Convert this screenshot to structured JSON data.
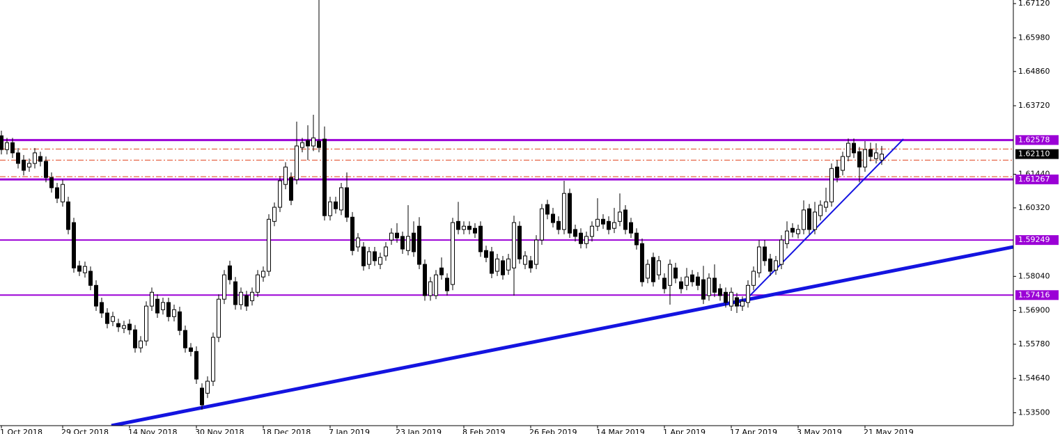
{
  "chart_data": {
    "type": "candlestick",
    "categories": [
      "1 Oct 2018",
      null,
      null,
      null,
      null,
      null,
      null,
      null,
      null,
      null,
      null,
      "29 Oct 2018",
      null,
      null,
      null,
      null,
      null,
      null,
      null,
      null,
      null,
      null,
      null,
      "14 Nov 2018",
      null,
      null,
      null,
      null,
      null,
      null,
      null,
      null,
      null,
      null,
      null,
      "30 Nov 2018",
      null,
      null,
      null,
      null,
      null,
      null,
      null,
      null,
      null,
      null,
      null,
      "18 Dec 2018",
      null,
      null,
      null,
      null,
      null,
      null,
      null,
      null,
      null,
      null,
      null,
      "7 Jan 2019",
      null,
      null,
      null,
      null,
      null,
      null,
      null,
      null,
      null,
      null,
      null,
      "23 Jan 2019",
      null,
      null,
      null,
      null,
      null,
      null,
      null,
      null,
      null,
      null,
      null,
      "8 Feb 2019",
      null,
      null,
      null,
      null,
      null,
      null,
      null,
      null,
      null,
      null,
      null,
      "26 Feb 2019",
      null,
      null,
      null,
      null,
      null,
      null,
      null,
      null,
      null,
      null,
      null,
      "14 Mar 2019",
      null,
      null,
      null,
      null,
      null,
      null,
      null,
      null,
      null,
      null,
      null,
      "1 Apr 2019",
      null,
      null,
      null,
      null,
      null,
      null,
      null,
      null,
      null,
      null,
      null,
      "17 Apr 2019",
      null,
      null,
      null,
      null,
      null,
      null,
      null,
      null,
      null,
      null,
      null,
      "3 May 2019",
      null,
      null,
      null,
      null,
      null,
      null,
      null,
      null,
      null,
      null,
      null,
      "21 May 2019",
      null,
      null,
      null
    ],
    "candles": [
      [
        1.6272,
        1.6289,
        1.621,
        1.6226
      ],
      [
        1.6226,
        1.6265,
        1.621,
        1.6249
      ],
      [
        1.6249,
        1.6265,
        1.6198,
        1.6215
      ],
      [
        1.6215,
        1.6231,
        1.6163,
        1.618
      ],
      [
        1.6191,
        1.6208,
        1.614,
        1.6157
      ],
      [
        1.6168,
        1.6196,
        1.6152,
        1.618
      ],
      [
        1.618,
        1.6231,
        1.6163,
        1.6215
      ],
      [
        1.6203,
        1.6219,
        1.617,
        1.6187
      ],
      [
        1.6187,
        1.6203,
        1.6117,
        1.6133
      ],
      [
        1.6133,
        1.615,
        1.6083,
        1.6099
      ],
      [
        1.6099,
        1.6115,
        1.6048,
        1.6064
      ],
      [
        1.6052,
        1.6126,
        1.6036,
        1.611
      ],
      [
        1.6052,
        1.6069,
        1.5944,
        1.596
      ],
      [
        1.5983,
        1.5999,
        1.5816,
        1.5832
      ],
      [
        1.5839,
        1.5856,
        1.5805,
        1.5821
      ],
      [
        1.5816,
        1.5853,
        1.58,
        1.5837
      ],
      [
        1.5821,
        1.5837,
        1.5758,
        1.5774
      ],
      [
        1.5774,
        1.5791,
        1.5689,
        1.5705
      ],
      [
        1.5717,
        1.5733,
        1.5666,
        1.5682
      ],
      [
        1.5682,
        1.5698,
        1.5631,
        1.5647
      ],
      [
        1.5654,
        1.5686,
        1.5638,
        1.567
      ],
      [
        1.5647,
        1.5663,
        1.5619,
        1.5636
      ],
      [
        1.5631,
        1.5656,
        1.5615,
        1.564
      ],
      [
        1.5645,
        1.5661,
        1.561,
        1.5626
      ],
      [
        1.5626,
        1.5642,
        1.555,
        1.5566
      ],
      [
        1.5566,
        1.5605,
        1.555,
        1.5589
      ],
      [
        1.5589,
        1.5721,
        1.5573,
        1.5705
      ],
      [
        1.5705,
        1.5767,
        1.5689,
        1.5751
      ],
      [
        1.5728,
        1.5744,
        1.5666,
        1.5682
      ],
      [
        1.5693,
        1.5733,
        1.5677,
        1.5717
      ],
      [
        1.5717,
        1.5733,
        1.5654,
        1.567
      ],
      [
        1.567,
        1.571,
        1.5654,
        1.5693
      ],
      [
        1.5686,
        1.5703,
        1.5608,
        1.5624
      ],
      [
        1.5624,
        1.564,
        1.555,
        1.5566
      ],
      [
        1.5566,
        1.5582,
        1.5538,
        1.5554
      ],
      [
        1.5554,
        1.5571,
        1.5446,
        1.5462
      ],
      [
        1.5432,
        1.5448,
        1.536,
        1.5376
      ],
      [
        1.5415,
        1.5471,
        1.5399,
        1.5455
      ],
      [
        1.5455,
        1.5617,
        1.5439,
        1.5601
      ],
      [
        1.5601,
        1.5744,
        1.5585,
        1.5728
      ],
      [
        1.5728,
        1.5825,
        1.5712,
        1.5809
      ],
      [
        1.5839,
        1.5856,
        1.5777,
        1.5793
      ],
      [
        1.5786,
        1.5802,
        1.5693,
        1.571
      ],
      [
        1.571,
        1.5767,
        1.5693,
        1.5751
      ],
      [
        1.574,
        1.5756,
        1.5689,
        1.5705
      ],
      [
        1.5723,
        1.5767,
        1.5707,
        1.5751
      ],
      [
        1.5751,
        1.5825,
        1.5735,
        1.5809
      ],
      [
        1.5802,
        1.5837,
        1.5786,
        1.5821
      ],
      [
        1.5821,
        1.6011,
        1.5805,
        1.5994
      ],
      [
        1.5987,
        1.605,
        1.5971,
        1.6034
      ],
      [
        1.6034,
        1.6138,
        1.6018,
        1.6122
      ],
      [
        1.611,
        1.6184,
        1.6094,
        1.6168
      ],
      [
        1.6133,
        1.615,
        1.6041,
        1.6057
      ],
      [
        1.6126,
        1.6319,
        1.611,
        1.6238
      ],
      [
        1.6233,
        1.6265,
        1.6217,
        1.6249
      ],
      [
        1.6256,
        1.6307,
        1.6191,
        1.6238
      ],
      [
        1.6238,
        1.6342,
        1.6221,
        1.6265
      ],
      [
        1.6254,
        1.6724,
        1.6217,
        1.6233
      ],
      [
        1.6261,
        1.6303,
        1.599,
        1.6006
      ],
      [
        1.6006,
        1.6069,
        1.599,
        1.6052
      ],
      [
        1.6052,
        1.6069,
        1.6013,
        1.6029
      ],
      [
        1.6025,
        1.6115,
        1.6008,
        1.6099
      ],
      [
        1.6099,
        1.615,
        1.5985,
        1.6001
      ],
      [
        1.6001,
        1.6018,
        1.5874,
        1.589
      ],
      [
        1.5902,
        1.5948,
        1.5886,
        1.5932
      ],
      [
        1.5902,
        1.5918,
        1.5823,
        1.5839
      ],
      [
        1.5844,
        1.5902,
        1.5828,
        1.5886
      ],
      [
        1.5886,
        1.5902,
        1.5839,
        1.5856
      ],
      [
        1.5844,
        1.5883,
        1.5828,
        1.5867
      ],
      [
        1.5872,
        1.5918,
        1.5856,
        1.5902
      ],
      [
        1.5925,
        1.5964,
        1.5909,
        1.5948
      ],
      [
        1.5948,
        1.5981,
        1.5916,
        1.5932
      ],
      [
        1.5937,
        1.5953,
        1.5879,
        1.5895
      ],
      [
        1.589,
        1.6041,
        1.5874,
        1.5937
      ],
      [
        1.5948,
        1.5987,
        1.5869,
        1.5886
      ],
      [
        1.5971,
        1.6001,
        1.5828,
        1.5844
      ],
      [
        1.5844,
        1.586,
        1.5723,
        1.574
      ],
      [
        1.574,
        1.5802,
        1.5723,
        1.5786
      ],
      [
        1.574,
        1.5825,
        1.5728,
        1.5809
      ],
      [
        1.5832,
        1.5867,
        1.5793,
        1.5809
      ],
      [
        1.5798,
        1.5814,
        1.574,
        1.5756
      ],
      [
        1.5777,
        1.5999,
        1.5758,
        1.5983
      ],
      [
        1.5987,
        1.6052,
        1.5944,
        1.596
      ],
      [
        1.596,
        1.5987,
        1.5944,
        1.5971
      ],
      [
        1.5971,
        1.5987,
        1.5944,
        1.596
      ],
      [
        1.5964,
        1.5981,
        1.5932,
        1.5948
      ],
      [
        1.5971,
        1.5987,
        1.5869,
        1.5886
      ],
      [
        1.589,
        1.5906,
        1.5851,
        1.5867
      ],
      [
        1.5886,
        1.5902,
        1.5798,
        1.5814
      ],
      [
        1.5821,
        1.5879,
        1.5805,
        1.5862
      ],
      [
        1.5856,
        1.5872,
        1.5793,
        1.5809
      ],
      [
        1.5825,
        1.5879,
        1.5809,
        1.5862
      ],
      [
        1.5832,
        1.6006,
        1.574,
        1.5983
      ],
      [
        1.5971,
        1.5987,
        1.5846,
        1.5862
      ],
      [
        1.5844,
        1.5888,
        1.5828,
        1.5872
      ],
      [
        1.5856,
        1.5872,
        1.5816,
        1.5832
      ],
      [
        1.5844,
        1.5941,
        1.5828,
        1.5925
      ],
      [
        1.5925,
        1.6045,
        1.5909,
        1.6029
      ],
      [
        1.6043,
        1.6059,
        1.5994,
        1.6011
      ],
      [
        1.6011,
        1.6032,
        1.5967,
        1.5983
      ],
      [
        1.5987,
        1.6004,
        1.5944,
        1.596
      ],
      [
        1.596,
        1.6122,
        1.5944,
        1.608
      ],
      [
        1.608,
        1.6096,
        1.5932,
        1.5948
      ],
      [
        1.596,
        1.5976,
        1.592,
        1.5937
      ],
      [
        1.5948,
        1.5964,
        1.5897,
        1.5913
      ],
      [
        1.5913,
        1.5953,
        1.5897,
        1.5937
      ],
      [
        1.5937,
        1.5987,
        1.592,
        1.5971
      ],
      [
        1.5971,
        1.6064,
        1.5955,
        1.5994
      ],
      [
        1.5994,
        1.6011,
        1.5962,
        1.5978
      ],
      [
        1.5987,
        1.6004,
        1.5944,
        1.596
      ],
      [
        1.5964,
        1.6032,
        1.5948,
        1.5983
      ],
      [
        1.5987,
        1.608,
        1.5971,
        1.6018
      ],
      [
        1.6025,
        1.6041,
        1.5944,
        1.596
      ],
      [
        1.5983,
        1.5999,
        1.5932,
        1.5948
      ],
      [
        1.5948,
        1.5964,
        1.5893,
        1.5909
      ],
      [
        1.5913,
        1.593,
        1.577,
        1.5786
      ],
      [
        1.5798,
        1.586,
        1.5781,
        1.5844
      ],
      [
        1.5867,
        1.5883,
        1.577,
        1.5786
      ],
      [
        1.5809,
        1.5872,
        1.5793,
        1.5856
      ],
      [
        1.5798,
        1.5814,
        1.5747,
        1.5763
      ],
      [
        1.5774,
        1.586,
        1.571,
        1.5844
      ],
      [
        1.5832,
        1.5849,
        1.5781,
        1.5798
      ],
      [
        1.5786,
        1.5802,
        1.5747,
        1.5763
      ],
      [
        1.5774,
        1.5832,
        1.5758,
        1.5802
      ],
      [
        1.5809,
        1.5825,
        1.577,
        1.5786
      ],
      [
        1.5802,
        1.5818,
        1.5758,
        1.5774
      ],
      [
        1.5793,
        1.5839,
        1.5712,
        1.5728
      ],
      [
        1.574,
        1.5814,
        1.5723,
        1.5798
      ],
      [
        1.5798,
        1.5844,
        1.5735,
        1.5751
      ],
      [
        1.5763,
        1.5779,
        1.5723,
        1.574
      ],
      [
        1.5751,
        1.5767,
        1.57,
        1.5717
      ],
      [
        1.5705,
        1.5767,
        1.5689,
        1.5751
      ],
      [
        1.5733,
        1.5749,
        1.5682,
        1.5705
      ],
      [
        1.5705,
        1.5737,
        1.5689,
        1.5721
      ],
      [
        1.5717,
        1.5791,
        1.57,
        1.5774
      ],
      [
        1.5774,
        1.5837,
        1.5758,
        1.5821
      ],
      [
        1.5816,
        1.5925,
        1.58,
        1.5902
      ],
      [
        1.5902,
        1.5925,
        1.5839,
        1.5856
      ],
      [
        1.5862,
        1.5879,
        1.5805,
        1.5821
      ],
      [
        1.5825,
        1.5872,
        1.5809,
        1.5856
      ],
      [
        1.5844,
        1.5941,
        1.5828,
        1.5925
      ],
      [
        1.5913,
        1.5987,
        1.5897,
        1.5955
      ],
      [
        1.5964,
        1.5981,
        1.5934,
        1.5951
      ],
      [
        1.5946,
        1.5976,
        1.593,
        1.596
      ],
      [
        1.596,
        1.6057,
        1.5944,
        1.6025
      ],
      [
        1.6029,
        1.6045,
        1.5944,
        1.596
      ],
      [
        1.596,
        1.6052,
        1.5944,
        1.6018
      ],
      [
        1.6006,
        1.6057,
        1.599,
        1.6041
      ],
      [
        1.6034,
        1.6099,
        1.6018,
        1.6052
      ],
      [
        1.6052,
        1.618,
        1.6036,
        1.6163
      ],
      [
        1.6168,
        1.6191,
        1.6117,
        1.6133
      ],
      [
        1.6157,
        1.6219,
        1.614,
        1.6203
      ],
      [
        1.6203,
        1.6263,
        1.6187,
        1.6247
      ],
      [
        1.6247,
        1.6263,
        1.6198,
        1.6215
      ],
      [
        1.6219,
        1.6235,
        1.6117,
        1.6168
      ],
      [
        1.6168,
        1.6254,
        1.6152,
        1.6226
      ],
      [
        1.6226,
        1.6249,
        1.6187,
        1.6203
      ],
      [
        1.6196,
        1.6247,
        1.618,
        1.6215
      ],
      [
        1.6191,
        1.6238,
        1.6175,
        1.6211
      ]
    ],
    "ylim": [
      1.5307,
      1.6724
    ],
    "yticks": [
      {
        "value": 1.6712,
        "label": "1.67120"
      },
      {
        "value": 1.6598,
        "label": "1.65980"
      },
      {
        "value": 1.6486,
        "label": "1.64860"
      },
      {
        "value": 1.6372,
        "label": "1.63720"
      },
      {
        "value": 1.6144,
        "label": "1.61440"
      },
      {
        "value": 1.6032,
        "label": "1.60320"
      },
      {
        "value": 1.5804,
        "label": "1.58040"
      },
      {
        "value": 1.569,
        "label": "1.56900"
      },
      {
        "value": 1.5578,
        "label": "1.55780"
      },
      {
        "value": 1.5464,
        "label": "1.54640"
      },
      {
        "value": 1.535,
        "label": "1.53500"
      }
    ],
    "levels": [
      1.62578,
      1.61267,
      1.59249,
      1.57416
    ],
    "level_color": "#9b00d6",
    "dashed_levels": [
      1.6228,
      1.6191,
      1.6136
    ],
    "dashed_color": "#e0401a",
    "current_price": {
      "value": 1.6211,
      "label": "1.62110"
    },
    "trendlines": [
      {
        "x": [
          19.75,
          181.6
        ],
        "y": [
          1.5307,
          1.5902
        ],
        "color": "#1414e0"
      },
      {
        "x": [
          132.5,
          161.9
        ],
        "y": [
          1.5705,
          1.6261
        ],
        "color": "#1414e0"
      }
    ]
  }
}
